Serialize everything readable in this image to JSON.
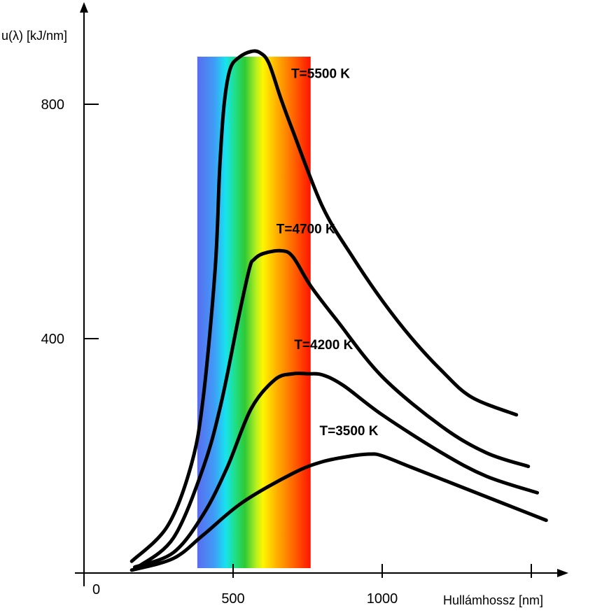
{
  "chart_data": {
    "type": "line",
    "title": "",
    "xlabel": "Hullámhossz [nm]",
    "ylabel": "u(λ) [kJ/nm]",
    "xlim": [
      -50,
      1570
    ],
    "ylim": [
      -5,
      970
    ],
    "x_ticks": [
      {
        "value": 500,
        "label": "500"
      },
      {
        "value": 1000,
        "label": "1000"
      },
      {
        "value": 1500,
        "label": ""
      }
    ],
    "y_ticks": [
      {
        "value": 400,
        "label": "400"
      },
      {
        "value": 800,
        "label": "800"
      }
    ],
    "origin_label": "0",
    "grid": false,
    "spectrum_band": {
      "from": 380,
      "to": 760
    },
    "series": [
      {
        "name": "T=5500 K",
        "x": [
          160,
          280,
          360,
          400,
          440,
          455,
          470,
          490,
          520,
          560,
          590,
          620,
          660,
          700,
          800,
          900,
          1000,
          1100,
          1200,
          1300,
          1450
        ],
        "y": [
          20,
          80,
          185,
          300,
          520,
          690,
          800,
          860,
          880,
          890,
          888,
          870,
          810,
          755,
          625,
          540,
          465,
          400,
          345,
          300,
          270
        ]
      },
      {
        "name": "T=4700 K",
        "x": [
          180,
          300,
          400,
          460,
          520,
          555,
          570,
          600,
          660,
          700,
          760,
          850,
          1000,
          1200,
          1350,
          1490
        ],
        "y": [
          10,
          60,
          180,
          290,
          440,
          520,
          535,
          545,
          550,
          540,
          490,
          430,
          335,
          250,
          205,
          182
        ]
      },
      {
        "name": "T=4200 K",
        "x": [
          170,
          300,
          400,
          480,
          560,
          640,
          700,
          750,
          800,
          870,
          1000,
          1200,
          1350,
          1520
        ],
        "y": [
          10,
          35,
          100,
          180,
          280,
          330,
          340,
          340,
          338,
          320,
          270,
          205,
          165,
          137
        ]
      },
      {
        "name": "T=3500 K",
        "x": [
          160,
          300,
          400,
          530,
          700,
          800,
          900,
          960,
          1000,
          1100,
          1250,
          1400,
          1550
        ],
        "y": [
          5,
          25,
          65,
          120,
          170,
          190,
          200,
          203,
          200,
          180,
          150,
          120,
          90
        ]
      }
    ],
    "labels": [
      {
        "series": 0,
        "text": "T=5500 K",
        "x": 695,
        "y": 845
      },
      {
        "series": 1,
        "text": "T=4700 K",
        "x": 645,
        "y": 580
      },
      {
        "series": 2,
        "text": "T=4200 K",
        "x": 705,
        "y": 382
      },
      {
        "series": 3,
        "text": "T=3500 K",
        "x": 790,
        "y": 235
      }
    ]
  }
}
